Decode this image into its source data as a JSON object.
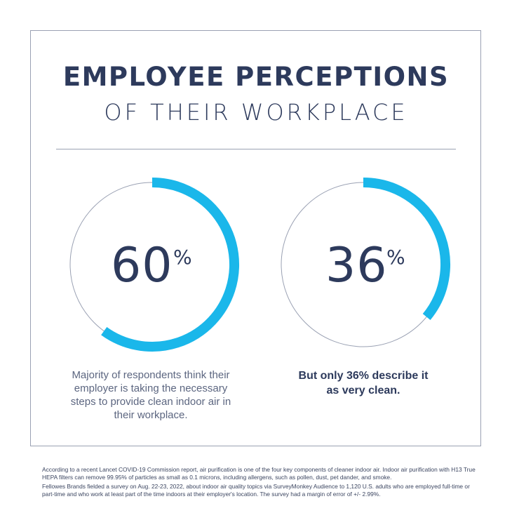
{
  "title": {
    "main": "EMPLOYEE PERCEPTIONS",
    "sub": "OF THEIR WORKPLACE"
  },
  "colors": {
    "accent": "#1ab7ea",
    "text": "#2d3a5c",
    "ring_track": "#9aa1b3"
  },
  "stats": [
    {
      "value": "60",
      "percent_sign": "%",
      "fraction": 0.6,
      "caption": "Majority of respondents think their employer is taking the necessary steps to provide clean indoor air in their workplace."
    },
    {
      "value": "36",
      "percent_sign": "%",
      "fraction": 0.36,
      "caption": "But only 36% describe it as very clean."
    }
  ],
  "footnotes": [
    "According to a recent Lancet COVID-19 Commission report, air purification is one of the four key components of cleaner indoor air. Indoor air purification with H13 True HEPA filters can remove 99.95% of particles as small as 0.1 microns, including allergens, such as pollen, dust, pet dander, and smoke.",
    "Fellowes Brands fielded a survey on Aug. 22-23, 2022, about indoor air quality topics via SurveyMonkey Audience to 1,120 U.S. adults who are employed full-time or part-time and who work at least part of the time indoors at their employer's location. The survey had a margin of error of +/- 2.99%."
  ]
}
